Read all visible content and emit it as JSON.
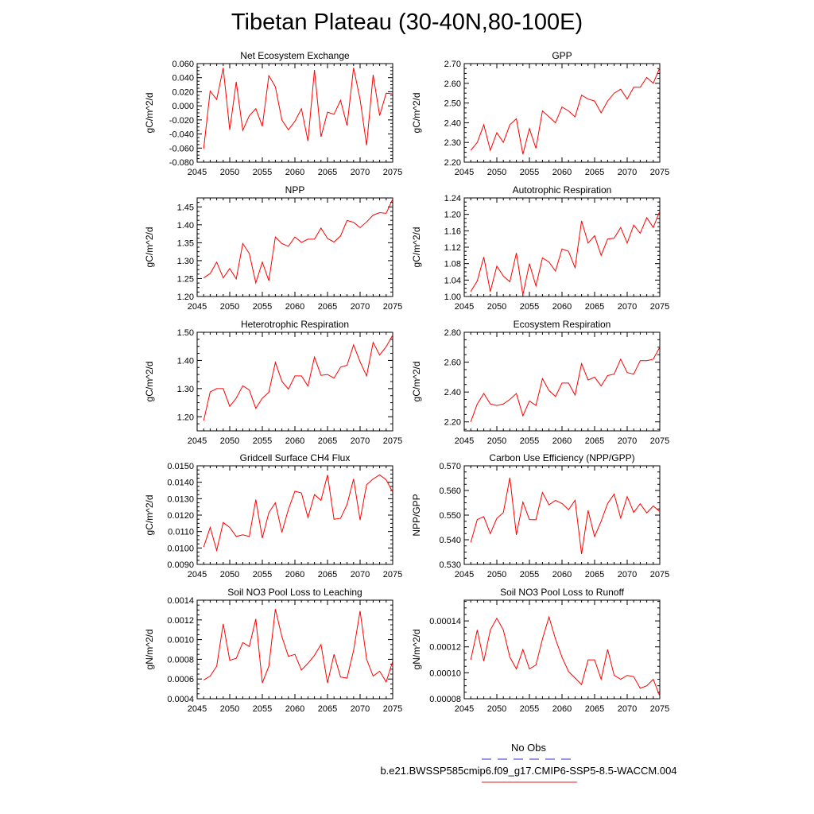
{
  "title": "Tibetan Plateau (30-40N,80-100E)",
  "legend": {
    "obs_label": "No Obs",
    "obs_color": "#3333cc",
    "model_label": "b.e21.BWSSP585cmip6.f09_g17.CMIP6-SSP5-8.5-WACCM.004",
    "model_color": "#e02020"
  },
  "line_color": "#ff0000",
  "chart_data": [
    {
      "type": "line",
      "title": "Net Ecosystem Exchange",
      "ylabel": "gC/m^2/d",
      "xlim": [
        2045,
        2075
      ],
      "ylim": [
        -0.08,
        0.06
      ],
      "x_ticks": [
        2045,
        2050,
        2055,
        2060,
        2065,
        2070,
        2075
      ],
      "y_ticks": [
        "-0.080",
        "-0.060",
        "-0.040",
        "-0.020",
        "0.000",
        "0.020",
        "0.040",
        "0.060"
      ],
      "x": [
        2046,
        2047,
        2048,
        2049,
        2050,
        2051,
        2052,
        2053,
        2054,
        2055,
        2056,
        2057,
        2058,
        2059,
        2060,
        2061,
        2062,
        2063,
        2064,
        2065,
        2066,
        2067,
        2068,
        2069,
        2070,
        2071,
        2072,
        2073,
        2074,
        2075
      ],
      "values": [
        -0.061,
        0.021,
        0.009,
        0.054,
        -0.034,
        0.034,
        -0.035,
        -0.014,
        -0.004,
        -0.029,
        0.043,
        0.027,
        -0.02,
        -0.034,
        -0.022,
        -0.004,
        -0.05,
        0.051,
        -0.044,
        -0.009,
        -0.012,
        0.008,
        -0.028,
        0.054,
        0.009,
        -0.056,
        0.044,
        -0.014,
        0.018,
        0.017
      ]
    },
    {
      "type": "line",
      "title": "GPP",
      "ylabel": "gC/m^2/d",
      "xlim": [
        2045,
        2075
      ],
      "ylim": [
        2.2,
        2.7
      ],
      "x_ticks": [
        2045,
        2050,
        2055,
        2060,
        2065,
        2070,
        2075
      ],
      "y_ticks": [
        "2.20",
        "2.30",
        "2.40",
        "2.50",
        "2.60",
        "2.70"
      ],
      "x": [
        2046,
        2047,
        2048,
        2049,
        2050,
        2051,
        2052,
        2053,
        2054,
        2055,
        2056,
        2057,
        2058,
        2059,
        2060,
        2061,
        2062,
        2063,
        2064,
        2065,
        2066,
        2067,
        2068,
        2069,
        2070,
        2071,
        2072,
        2073,
        2074,
        2075
      ],
      "values": [
        2.26,
        2.3,
        2.39,
        2.26,
        2.35,
        2.3,
        2.39,
        2.42,
        2.24,
        2.37,
        2.27,
        2.46,
        2.43,
        2.4,
        2.48,
        2.46,
        2.43,
        2.54,
        2.52,
        2.51,
        2.45,
        2.51,
        2.55,
        2.57,
        2.52,
        2.58,
        2.58,
        2.63,
        2.6,
        2.68
      ]
    },
    {
      "type": "line",
      "title": "NPP",
      "ylabel": "gC/m^2/d",
      "xlim": [
        2045,
        2075
      ],
      "ylim": [
        1.2,
        1.475
      ],
      "x_ticks": [
        2045,
        2050,
        2055,
        2060,
        2065,
        2070,
        2075
      ],
      "y_ticks": [
        "1.20",
        "1.25",
        "1.30",
        "1.35",
        "1.40",
        "1.45"
      ],
      "x": [
        2046,
        2047,
        2048,
        2049,
        2050,
        2051,
        2052,
        2053,
        2054,
        2055,
        2056,
        2057,
        2058,
        2059,
        2060,
        2061,
        2062,
        2063,
        2064,
        2065,
        2066,
        2067,
        2068,
        2069,
        2070,
        2071,
        2072,
        2073,
        2074,
        2075
      ],
      "values": [
        1.252,
        1.264,
        1.296,
        1.252,
        1.278,
        1.249,
        1.348,
        1.32,
        1.238,
        1.296,
        1.244,
        1.366,
        1.348,
        1.34,
        1.366,
        1.351,
        1.36,
        1.36,
        1.391,
        1.362,
        1.352,
        1.369,
        1.412,
        1.407,
        1.392,
        1.408,
        1.427,
        1.434,
        1.432,
        1.472
      ]
    },
    {
      "type": "line",
      "title": "Autotrophic Respiration",
      "ylabel": "gC/m^2/d",
      "xlim": [
        2045,
        2075
      ],
      "ylim": [
        1.0,
        1.24
      ],
      "x_ticks": [
        2045,
        2050,
        2055,
        2060,
        2065,
        2070,
        2075
      ],
      "y_ticks": [
        "1.00",
        "1.04",
        "1.08",
        "1.12",
        "1.16",
        "1.20",
        "1.24"
      ],
      "x": [
        2046,
        2047,
        2048,
        2049,
        2050,
        2051,
        2052,
        2053,
        2054,
        2055,
        2056,
        2057,
        2058,
        2059,
        2060,
        2061,
        2062,
        2063,
        2064,
        2065,
        2066,
        2067,
        2068,
        2069,
        2070,
        2071,
        2072,
        2073,
        2074,
        2075
      ],
      "values": [
        1.012,
        1.038,
        1.096,
        1.012,
        1.074,
        1.05,
        1.036,
        1.106,
        1.004,
        1.08,
        1.026,
        1.094,
        1.084,
        1.062,
        1.116,
        1.11,
        1.07,
        1.184,
        1.13,
        1.148,
        1.1,
        1.14,
        1.142,
        1.168,
        1.13,
        1.174,
        1.154,
        1.192,
        1.168,
        1.208
      ]
    },
    {
      "type": "line",
      "title": "Heterotrophic Respiration",
      "ylabel": "gC/m^2/d",
      "xlim": [
        2045,
        2075
      ],
      "ylim": [
        1.15,
        1.5
      ],
      "x_ticks": [
        2045,
        2050,
        2055,
        2060,
        2065,
        2070,
        2075
      ],
      "y_ticks": [
        "1.20",
        "1.30",
        "1.40",
        "1.50"
      ],
      "x": [
        2046,
        2047,
        2048,
        2049,
        2050,
        2051,
        2052,
        2053,
        2054,
        2055,
        2056,
        2057,
        2058,
        2059,
        2060,
        2061,
        2062,
        2063,
        2064,
        2065,
        2066,
        2067,
        2068,
        2069,
        2070,
        2071,
        2072,
        2073,
        2074,
        2075
      ],
      "values": [
        1.186,
        1.288,
        1.3,
        1.3,
        1.237,
        1.266,
        1.31,
        1.295,
        1.23,
        1.266,
        1.287,
        1.393,
        1.326,
        1.298,
        1.345,
        1.345,
        1.309,
        1.412,
        1.347,
        1.35,
        1.337,
        1.376,
        1.383,
        1.455,
        1.395,
        1.345,
        1.464,
        1.419,
        1.449,
        1.49
      ]
    },
    {
      "type": "line",
      "title": "Ecosystem Respiration",
      "ylabel": "gC/m^2/d",
      "xlim": [
        2045,
        2075
      ],
      "ylim": [
        2.14,
        2.8
      ],
      "x_ticks": [
        2045,
        2050,
        2055,
        2060,
        2065,
        2070,
        2075
      ],
      "y_ticks": [
        "2.20",
        "2.40",
        "2.60",
        "2.80"
      ],
      "x": [
        2046,
        2047,
        2048,
        2049,
        2050,
        2051,
        2052,
        2053,
        2054,
        2055,
        2056,
        2057,
        2058,
        2059,
        2060,
        2061,
        2062,
        2063,
        2064,
        2065,
        2066,
        2067,
        2068,
        2069,
        2070,
        2071,
        2072,
        2073,
        2074,
        2075
      ],
      "values": [
        2.2,
        2.32,
        2.39,
        2.32,
        2.31,
        2.32,
        2.35,
        2.39,
        2.24,
        2.34,
        2.31,
        2.49,
        2.41,
        2.37,
        2.46,
        2.46,
        2.38,
        2.59,
        2.48,
        2.5,
        2.44,
        2.51,
        2.52,
        2.62,
        2.53,
        2.52,
        2.61,
        2.61,
        2.62,
        2.7
      ]
    },
    {
      "type": "line",
      "title": "Gridcell Surface CH4 Flux",
      "ylabel": "gC/m^2/d",
      "xlim": [
        2045,
        2075
      ],
      "ylim": [
        0.009,
        0.015
      ],
      "x_ticks": [
        2045,
        2050,
        2055,
        2060,
        2065,
        2070,
        2075
      ],
      "y_ticks": [
        "0.0090",
        "0.0100",
        "0.0110",
        "0.0120",
        "0.0130",
        "0.0140",
        "0.0150"
      ],
      "x": [
        2046,
        2047,
        2048,
        2049,
        2050,
        2051,
        2052,
        2053,
        2054,
        2055,
        2056,
        2057,
        2058,
        2059,
        2060,
        2061,
        2062,
        2063,
        2064,
        2065,
        2066,
        2067,
        2068,
        2069,
        2070,
        2071,
        2072,
        2073,
        2074,
        2075
      ],
      "values": [
        0.01005,
        0.01125,
        0.00985,
        0.01155,
        0.01125,
        0.0107,
        0.0108,
        0.0107,
        0.01295,
        0.0106,
        0.01215,
        0.01275,
        0.01095,
        0.01235,
        0.01345,
        0.01335,
        0.01185,
        0.01325,
        0.0129,
        0.01445,
        0.01175,
        0.0118,
        0.01265,
        0.0142,
        0.0117,
        0.01385,
        0.0142,
        0.01445,
        0.01415,
        0.0134
      ]
    },
    {
      "type": "line",
      "title": "Carbon Use Efficiency (NPP/GPP)",
      "ylabel": "NPP/GPP",
      "xlim": [
        2045,
        2075
      ],
      "ylim": [
        0.53,
        0.57
      ],
      "x_ticks": [
        2045,
        2050,
        2055,
        2060,
        2065,
        2070,
        2075
      ],
      "y_ticks": [
        "0.530",
        "0.540",
        "0.550",
        "0.560",
        "0.570"
      ],
      "x": [
        2046,
        2047,
        2048,
        2049,
        2050,
        2051,
        2052,
        2053,
        2054,
        2055,
        2056,
        2057,
        2058,
        2059,
        2060,
        2061,
        2062,
        2063,
        2064,
        2065,
        2066,
        2067,
        2068,
        2069,
        2070,
        2071,
        2072,
        2073,
        2074,
        2075
      ],
      "values": [
        0.5389,
        0.5482,
        0.5494,
        0.5425,
        0.5487,
        0.551,
        0.5652,
        0.542,
        0.5553,
        0.5482,
        0.5481,
        0.5592,
        0.5542,
        0.556,
        0.5547,
        0.5522,
        0.556,
        0.5342,
        0.5519,
        0.5413,
        0.5475,
        0.5547,
        0.5585,
        0.5488,
        0.5575,
        0.5511,
        0.5546,
        0.5509,
        0.5537,
        0.5514
      ]
    },
    {
      "type": "line",
      "title": "Soil NO3 Pool Loss to Leaching",
      "ylabel": "gN/m^2/d",
      "xlim": [
        2045,
        2075
      ],
      "ylim": [
        0.0004,
        0.0014
      ],
      "x_ticks": [
        2045,
        2050,
        2055,
        2060,
        2065,
        2070,
        2075
      ],
      "y_ticks": [
        "0.0004",
        "0.0006",
        "0.0008",
        "0.0010",
        "0.0012",
        "0.0014"
      ],
      "x": [
        2046,
        2047,
        2048,
        2049,
        2050,
        2051,
        2052,
        2053,
        2054,
        2055,
        2056,
        2057,
        2058,
        2059,
        2060,
        2061,
        2062,
        2063,
        2064,
        2065,
        2066,
        2067,
        2068,
        2069,
        2070,
        2071,
        2072,
        2073,
        2074,
        2075
      ],
      "values": [
        0.00059,
        0.00063,
        0.00073,
        0.00116,
        0.00079,
        0.00081,
        0.00097,
        0.00093,
        0.00121,
        0.00056,
        0.00073,
        0.00131,
        0.00103,
        0.00083,
        0.00085,
        0.00069,
        0.00076,
        0.00084,
        0.00095,
        0.00056,
        0.00085,
        0.00062,
        0.00061,
        0.00089,
        0.00129,
        0.0008,
        0.00063,
        0.00068,
        0.00057,
        0.00078
      ]
    },
    {
      "type": "line",
      "title": "Soil NO3 Pool Loss to Runoff",
      "ylabel": "gN/m^2/d",
      "xlim": [
        2045,
        2075
      ],
      "ylim": [
        8e-05,
        0.000156
      ],
      "x_ticks": [
        2045,
        2050,
        2055,
        2060,
        2065,
        2070,
        2075
      ],
      "y_ticks": [
        "0.00008",
        "0.00010",
        "0.00012",
        "0.00014"
      ],
      "x": [
        2046,
        2047,
        2048,
        2049,
        2050,
        2051,
        2052,
        2053,
        2054,
        2055,
        2056,
        2057,
        2058,
        2059,
        2060,
        2061,
        2062,
        2063,
        2064,
        2065,
        2066,
        2067,
        2068,
        2069,
        2070,
        2071,
        2072,
        2073,
        2074,
        2075
      ],
      "values": [
        0.00011,
        0.000133,
        0.000109,
        0.000133,
        0.000142,
        0.000133,
        0.000112,
        0.000103,
        0.000118,
        0.000103,
        0.000106,
        0.000126,
        0.000143,
        0.000126,
        0.000112,
        0.000101,
        9.6e-05,
        9.1e-05,
        0.00011,
        0.00011,
        9.5e-05,
        0.000118,
        9.8e-05,
        9.5e-05,
        9.8e-05,
        9.7e-05,
        8.8e-05,
        9e-05,
        9.5e-05,
        8.2e-05
      ]
    }
  ]
}
